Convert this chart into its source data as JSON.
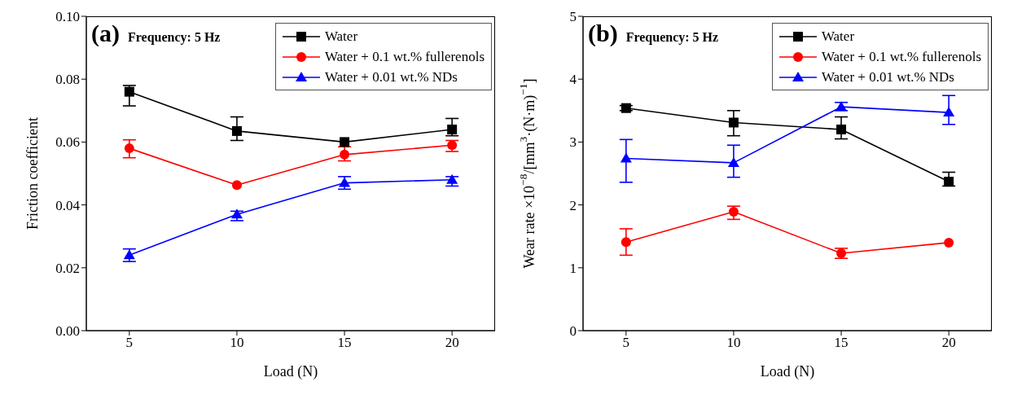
{
  "chart_data": [
    {
      "type": "line",
      "xlabel": "Load (N)",
      "ylabel": "Friction coefficient",
      "annotations": [
        "(a)",
        "Frequency: 5 Hz"
      ],
      "x": [
        5,
        10,
        15,
        20
      ],
      "xlim": [
        3,
        22
      ],
      "xticks": [
        5,
        10,
        15,
        20
      ],
      "ylim": [
        0,
        0.1
      ],
      "yticks": [
        {
          "value": 0,
          "label": "0.00"
        },
        {
          "value": 0.02,
          "label": "0.02"
        },
        {
          "value": 0.04,
          "label": "0.04"
        },
        {
          "value": 0.06,
          "label": "0.06"
        },
        {
          "value": 0.08,
          "label": "0.08"
        },
        {
          "value": 0.1,
          "label": "0.10"
        }
      ],
      "grid": false,
      "legend": "top right",
      "series": [
        {
          "name": "Water",
          "color": "#000000",
          "marker": "square",
          "values": [
            0.076,
            0.0635,
            0.06,
            0.064
          ],
          "errors": [
            [
              0.0715,
              0.078
            ],
            [
              0.0605,
              0.068
            ],
            null,
            [
              0.062,
              0.0675
            ]
          ]
        },
        {
          "name": "Water + 0.1 wt.% fullerenols",
          "color": "#ff0000",
          "marker": "circle",
          "values": [
            0.058,
            0.0463,
            0.056,
            0.059
          ],
          "errors": [
            [
              0.055,
              0.0607
            ],
            null,
            [
              0.054,
              0.0585
            ],
            [
              0.057,
              0.0605
            ]
          ]
        },
        {
          "name": "Water + 0.01 wt.% NDs",
          "color": "#0000ff",
          "marker": "triangle",
          "values": [
            0.024,
            0.037,
            0.047,
            0.048
          ],
          "errors": [
            [
              0.022,
              0.026
            ],
            [
              0.035,
              0.038
            ],
            [
              0.045,
              0.049
            ],
            [
              0.046,
              0.049
            ]
          ]
        }
      ]
    },
    {
      "type": "line",
      "xlabel": "Load (N)",
      "ylabel": "Wear rate ×10$^{−8}$/[mm$^{3}$·(N·m)$^{−1}$]",
      "annotations": [
        "(b)",
        "Frequency: 5 Hz"
      ],
      "x": [
        5,
        10,
        15,
        20
      ],
      "xlim": [
        3,
        22
      ],
      "xticks": [
        5,
        10,
        15,
        20
      ],
      "ylim": [
        0,
        5
      ],
      "yticks": [
        0,
        1,
        2,
        3,
        4,
        5
      ],
      "grid": false,
      "legend": "top right",
      "series": [
        {
          "name": "Water",
          "color": "#000000",
          "marker": "square",
          "values": [
            3.54,
            3.31,
            3.2,
            2.37
          ],
          "errors": [
            [
              3.5,
              3.58
            ],
            [
              3.1,
              3.5
            ],
            [
              3.05,
              3.4
            ],
            [
              2.3,
              2.52
            ]
          ]
        },
        {
          "name": "Water + 0.1 wt.% fullerenols",
          "color": "#ff0000",
          "marker": "circle",
          "values": [
            1.41,
            1.89,
            1.23,
            1.4
          ],
          "errors": [
            [
              1.2,
              1.62
            ],
            [
              1.77,
              1.98
            ],
            [
              1.15,
              1.31
            ],
            null
          ]
        },
        {
          "name": "Water + 0.01 wt.% NDs",
          "color": "#0000ff",
          "marker": "triangle",
          "values": [
            2.74,
            2.67,
            3.56,
            3.47
          ],
          "errors": [
            [
              2.36,
              3.04
            ],
            [
              2.44,
              2.95
            ],
            [
              3.5,
              3.63
            ],
            [
              3.28,
              3.74
            ]
          ]
        }
      ]
    }
  ]
}
